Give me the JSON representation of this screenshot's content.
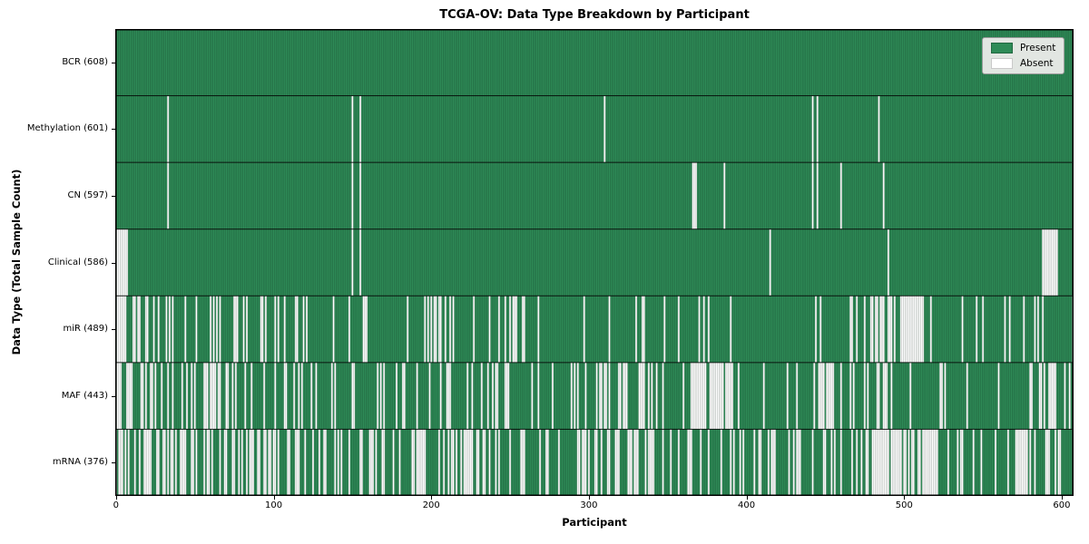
{
  "chart_data": {
    "type": "heatmap",
    "title": "TCGA-OV: Data Type Breakdown by Participant",
    "xlabel": "Participant",
    "ylabel": "Data Type (Total Sample Count)",
    "x_ticks": [
      0,
      100,
      200,
      300,
      400,
      500,
      600
    ],
    "n_participants": 608,
    "grid": false,
    "colors": {
      "present": "#2e8b57",
      "absent": "#ffffff"
    },
    "legend": {
      "position": "upper right",
      "entries": [
        {
          "label": "Present",
          "color": "#2e8b57"
        },
        {
          "label": "Absent",
          "color": "#ffffff"
        }
      ]
    },
    "rows": [
      {
        "label": "BCR (608)",
        "name": "BCR",
        "present": 608,
        "absent": 0,
        "absent_positions": [],
        "absent_segments": []
      },
      {
        "label": "Methylation (601)",
        "name": "Methylation",
        "present": 601,
        "absent": 7,
        "absent_positions": [
          33,
          150,
          155,
          310,
          442,
          445,
          484
        ],
        "absent_segments": []
      },
      {
        "label": "CN (597)",
        "name": "CN",
        "present": 597,
        "absent": 11,
        "absent_positions": [
          33,
          150,
          155,
          366,
          367,
          368,
          386,
          442,
          445,
          460,
          487
        ],
        "absent_segments": []
      },
      {
        "label": "Clinical (586)",
        "name": "Clinical",
        "present": 586,
        "absent": 22,
        "absent_positions": [
          0,
          1,
          2,
          3,
          4,
          5,
          6,
          7,
          150,
          155,
          415,
          490,
          588,
          589,
          590,
          591,
          592,
          593,
          594,
          595,
          596,
          597
        ],
        "absent_segments": []
      },
      {
        "label": "miR (489)",
        "name": "miR",
        "present": 489,
        "absent": 119,
        "absent_positions": [],
        "absent_segments": [
          [
            0,
            5,
            4
          ],
          [
            5,
            130,
            34
          ],
          [
            130,
            195,
            6
          ],
          [
            195,
            215,
            10
          ],
          [
            215,
            240,
            2
          ],
          [
            240,
            262,
            8
          ],
          [
            262,
            345,
            6
          ],
          [
            345,
            455,
            8
          ],
          [
            455,
            480,
            5
          ],
          [
            480,
            512,
            24
          ],
          [
            512,
            608,
            12
          ]
        ]
      },
      {
        "label": "MAF (443)",
        "name": "MAF",
        "present": 443,
        "absent": 165,
        "absent_positions": [],
        "absent_segments": [
          [
            0,
            5,
            4
          ],
          [
            5,
            70,
            26
          ],
          [
            70,
            130,
            15
          ],
          [
            130,
            160,
            4
          ],
          [
            160,
            230,
            14
          ],
          [
            230,
            260,
            8
          ],
          [
            260,
            285,
            3
          ],
          [
            285,
            345,
            22
          ],
          [
            345,
            365,
            2
          ],
          [
            365,
            392,
            24
          ],
          [
            392,
            445,
            5
          ],
          [
            445,
            495,
            20
          ],
          [
            495,
            545,
            5
          ],
          [
            545,
            585,
            3
          ],
          [
            585,
            597,
            8
          ],
          [
            597,
            608,
            2
          ]
        ]
      },
      {
        "label": "mRNA (376)",
        "name": "mRNA",
        "present": 376,
        "absent": 232,
        "absent_positions": [],
        "absent_segments": [
          [
            0,
            5,
            4
          ],
          [
            5,
            30,
            11
          ],
          [
            30,
            130,
            45
          ],
          [
            130,
            190,
            18
          ],
          [
            190,
            260,
            30
          ],
          [
            260,
            285,
            4
          ],
          [
            285,
            345,
            25
          ],
          [
            345,
            420,
            20
          ],
          [
            420,
            480,
            16
          ],
          [
            480,
            522,
            35
          ],
          [
            522,
            570,
            8
          ],
          [
            570,
            600,
            16
          ]
        ]
      }
    ]
  }
}
